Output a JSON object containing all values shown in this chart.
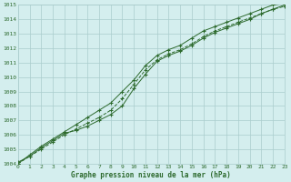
{
  "title": "Graphe pression niveau de la mer (hPa)",
  "background_color": "#d4eeee",
  "grid_color": "#aacccc",
  "line_color": "#2d6a2d",
  "xlim": [
    0,
    23
  ],
  "ylim": [
    1004,
    1015
  ],
  "xticks": [
    0,
    1,
    2,
    3,
    4,
    5,
    6,
    7,
    8,
    9,
    10,
    11,
    12,
    13,
    14,
    15,
    16,
    17,
    18,
    19,
    20,
    21,
    22,
    23
  ],
  "yticks": [
    1004,
    1005,
    1006,
    1007,
    1008,
    1009,
    1010,
    1011,
    1012,
    1013,
    1014,
    1015
  ],
  "line1_x": [
    0,
    1,
    2,
    3,
    4,
    5,
    6,
    7,
    8,
    9,
    10,
    11,
    12,
    13,
    14,
    15,
    16,
    17,
    18,
    19,
    20,
    21,
    22,
    23
  ],
  "line1_y": [
    1004.1,
    1004.5,
    1005.1,
    1005.6,
    1006.1,
    1006.3,
    1006.6,
    1007.0,
    1007.4,
    1008.0,
    1009.2,
    1010.2,
    1011.1,
    1011.5,
    1011.8,
    1012.2,
    1012.7,
    1013.1,
    1013.4,
    1013.7,
    1014.0,
    1014.4,
    1014.7,
    1015.0
  ],
  "line2_x": [
    0,
    1,
    2,
    3,
    4,
    5,
    6,
    7,
    8,
    9,
    10,
    11,
    12,
    13,
    14,
    15,
    16,
    17,
    18,
    19,
    20,
    21,
    22,
    23
  ],
  "line2_y": [
    1004.0,
    1004.5,
    1005.0,
    1005.5,
    1006.0,
    1006.4,
    1006.8,
    1007.2,
    1007.7,
    1008.5,
    1009.5,
    1010.5,
    1011.2,
    1011.6,
    1011.9,
    1012.3,
    1012.8,
    1013.2,
    1013.5,
    1013.8,
    1014.1,
    1014.4,
    1014.7,
    1014.9
  ],
  "line3_x": [
    0,
    1,
    2,
    3,
    4,
    5,
    6,
    7,
    8,
    9,
    10,
    11,
    12,
    13,
    14,
    15,
    16,
    17,
    18,
    19,
    20,
    21,
    22,
    23
  ],
  "line3_y": [
    1004.0,
    1004.6,
    1005.2,
    1005.7,
    1006.2,
    1006.7,
    1007.2,
    1007.7,
    1008.2,
    1009.0,
    1009.8,
    1010.8,
    1011.5,
    1011.9,
    1012.2,
    1012.7,
    1013.2,
    1013.5,
    1013.8,
    1014.1,
    1014.4,
    1014.7,
    1015.0,
    1015.1
  ]
}
